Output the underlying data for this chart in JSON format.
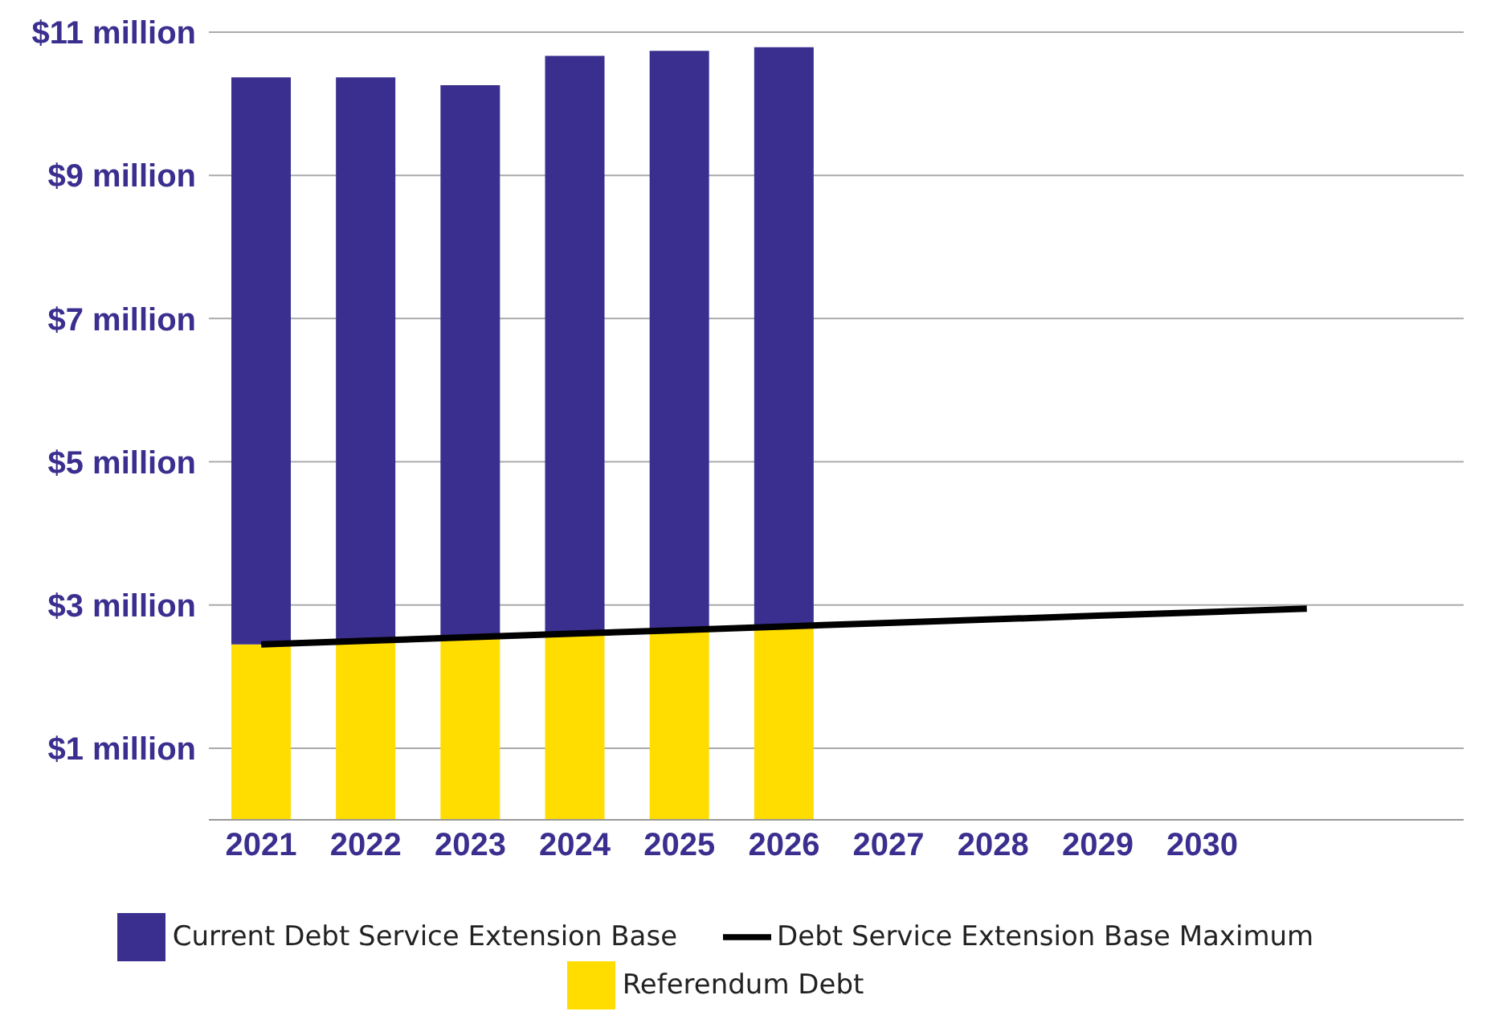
{
  "chart_data": {
    "type": "bar",
    "stacked": true,
    "categories": [
      "2021",
      "2022",
      "2023",
      "2024",
      "2025",
      "2026",
      "2027",
      "2028",
      "2029",
      "2030",
      null,
      null
    ],
    "series": [
      {
        "name": "Referendum Debt",
        "color": "#ffdd00",
        "values": [
          2.45,
          2.5,
          2.55,
          2.6,
          2.65,
          2.7,
          null,
          null,
          null,
          null,
          null,
          null
        ]
      },
      {
        "name": "Current Debt Service Extension Base",
        "color": "#3a2f8f",
        "values": [
          7.92,
          7.87,
          7.71,
          8.07,
          8.09,
          8.09,
          null,
          null,
          null,
          null,
          null,
          null
        ]
      },
      {
        "name": "Debt Service Extension Base Maximum",
        "type": "line",
        "color": "#000000",
        "values": [
          2.45,
          2.5,
          2.55,
          2.6,
          2.65,
          2.7,
          2.75,
          2.8,
          2.85,
          2.9,
          2.95,
          null
        ]
      }
    ],
    "ylim": [
      0,
      11
    ],
    "yticks": [
      {
        "value": 1,
        "label": "$1 million"
      },
      {
        "value": 3,
        "label": "$3 million"
      },
      {
        "value": 5,
        "label": "$5 million"
      },
      {
        "value": 7,
        "label": "$7 million"
      },
      {
        "value": 9,
        "label": "$9 million"
      },
      {
        "value": 11,
        "label": "$11 million"
      }
    ],
    "grid": "y",
    "legend": "bottom",
    "marker": "none",
    "line_style": "solid"
  }
}
